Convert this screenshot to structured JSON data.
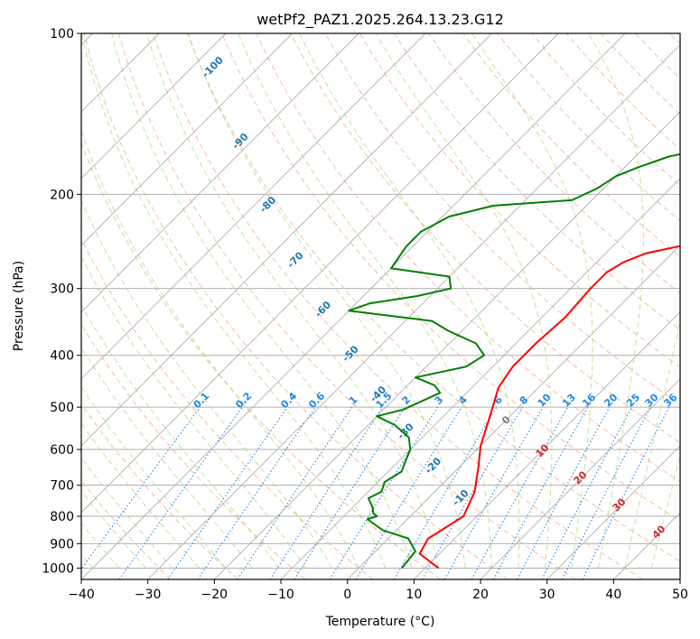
{
  "chart_data": {
    "type": "line",
    "title": "wetPf2_PAZ1.2025.264.13.23.G12",
    "xlabel": "Temperature (°C)",
    "ylabel": "Pressure (hPa)",
    "xlim": [
      -40,
      50
    ],
    "ylim": [
      1050,
      100
    ],
    "x_ticks": [
      -40,
      -30,
      -20,
      -10,
      0,
      10,
      20,
      30,
      40,
      50
    ],
    "x_tick_labels": [
      "−40",
      "−30",
      "−20",
      "−10",
      "0",
      "10",
      "20",
      "30",
      "40",
      "50"
    ],
    "y_ticks": [
      100,
      200,
      300,
      400,
      500,
      600,
      700,
      800,
      900,
      1000
    ],
    "y_tick_labels": [
      "100",
      "200",
      "300",
      "400",
      "500",
      "600",
      "700",
      "800",
      "900",
      "1000"
    ],
    "skew": "skew-T log-p",
    "colors": {
      "temperature": "#ff0000",
      "dewpoint": "#008000",
      "isotherm": "#b0b0b0",
      "dry_adiabat": "#f4a582",
      "moist_adiabat": "#a6d96a",
      "mixing_ratio": "#1e88e5",
      "moist_label": "#1f77b4",
      "warm_label": "#d62728"
    },
    "series": [
      {
        "name": "Temperature",
        "points": [
          [
            12,
            1000
          ],
          [
            7,
            940
          ],
          [
            6,
            880
          ],
          [
            8,
            800
          ],
          [
            6,
            720
          ],
          [
            3,
            650
          ],
          [
            0,
            590
          ],
          [
            -3,
            520
          ],
          [
            -6,
            460
          ],
          [
            -7,
            420
          ],
          [
            -7,
            380
          ],
          [
            -6.5,
            340
          ],
          [
            -7,
            300
          ],
          [
            -7,
            280
          ],
          [
            -6,
            268
          ],
          [
            -4,
            258
          ],
          [
            0,
            250
          ],
          [
            4,
            240
          ],
          [
            8,
            230
          ],
          [
            12,
            220
          ],
          [
            16,
            205
          ],
          [
            19,
            190
          ],
          [
            23,
            170
          ],
          [
            26,
            155
          ],
          [
            31,
            135
          ],
          [
            33,
            125
          ],
          [
            35,
            115
          ],
          [
            36,
            100
          ]
        ]
      },
      {
        "name": "Dewpoint",
        "points": [
          [
            6.5,
            1000
          ],
          [
            6,
            930
          ],
          [
            3,
            880
          ],
          [
            -2,
            850
          ],
          [
            -5,
            820
          ],
          [
            -6,
            810
          ],
          [
            -5,
            800
          ],
          [
            -6,
            790
          ],
          [
            -7,
            770
          ],
          [
            -9,
            740
          ],
          [
            -8,
            720
          ],
          [
            -9,
            690
          ],
          [
            -8,
            660
          ],
          [
            -9,
            630
          ],
          [
            -10,
            600
          ],
          [
            -12,
            570
          ],
          [
            -16,
            540
          ],
          [
            -20,
            520
          ],
          [
            -17,
            505
          ],
          [
            -14,
            470
          ],
          [
            -16,
            455
          ],
          [
            -20,
            440
          ],
          [
            -14,
            420
          ],
          [
            -13,
            400
          ],
          [
            -16,
            380
          ],
          [
            -22,
            360
          ],
          [
            -26,
            345
          ],
          [
            -40,
            330
          ],
          [
            -38,
            320
          ],
          [
            -32,
            310
          ],
          [
            -28,
            300
          ],
          [
            -30,
            285
          ],
          [
            -40,
            275
          ],
          [
            -41,
            250
          ],
          [
            -41,
            235
          ],
          [
            -39,
            220
          ],
          [
            -34,
            210
          ],
          [
            -23,
            205
          ],
          [
            -21,
            195
          ],
          [
            -20,
            185
          ],
          [
            -18,
            178
          ],
          [
            -15,
            170
          ],
          [
            -11,
            165
          ],
          [
            -7,
            160
          ],
          [
            -6,
            150
          ],
          [
            -7,
            140
          ],
          [
            -7,
            130
          ],
          [
            -7,
            120
          ],
          [
            -4,
            113
          ],
          [
            -2,
            108
          ],
          [
            0,
            100
          ]
        ]
      }
    ],
    "moist_adiabat_labels": [
      "-100",
      "-90",
      "-80",
      "-70",
      "-60",
      "-50",
      "-40",
      "-30",
      "-20",
      "-10"
    ],
    "mixing_ratio_labels": [
      "0.1",
      "0.2",
      "0.4",
      "0.6",
      "1",
      "1.5",
      "2",
      "3",
      "4",
      "6",
      "8",
      "10",
      "13",
      "16",
      "20",
      "25",
      "30",
      "36"
    ],
    "warm_adiabat_labels": [
      "0",
      "10",
      "20",
      "30",
      "40"
    ]
  }
}
